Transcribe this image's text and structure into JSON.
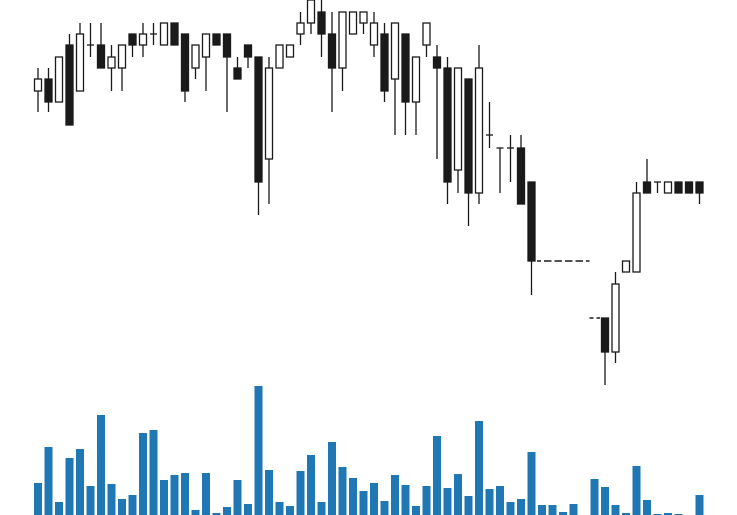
{
  "chart_data": {
    "type": "candlestick",
    "open": [
      309,
      321,
      298,
      355,
      309,
      355,
      355,
      332,
      332,
      366,
      355,
      366,
      355,
      377,
      366,
      332,
      343,
      366,
      366,
      332,
      355,
      343,
      241,
      332,
      343,
      366,
      377,
      388,
      366,
      332,
      366,
      377,
      355,
      366,
      321,
      366,
      298,
      355,
      343,
      332,
      230,
      321,
      207,
      265,
      252,
      252,
      252,
      218,
      139,
      139,
      139,
      139,
      139,
      82,
      82,
      48,
      128,
      128,
      218,
      218,
      207,
      218,
      218,
      218
    ],
    "high": [
      332,
      332,
      343,
      366,
      377,
      377,
      377,
      355,
      355,
      366,
      377,
      377,
      377,
      377,
      366,
      355,
      366,
      366,
      366,
      343,
      355,
      343,
      343,
      355,
      355,
      388,
      400,
      400,
      388,
      388,
      388,
      388,
      388,
      377,
      377,
      366,
      343,
      377,
      355,
      343,
      332,
      321,
      355,
      298,
      252,
      265,
      265,
      218,
      139,
      139,
      139,
      139,
      139,
      82,
      82,
      128,
      139,
      218,
      241,
      218,
      218,
      218,
      218,
      218
    ],
    "low": [
      288,
      288,
      298,
      275,
      309,
      343,
      332,
      309,
      309,
      343,
      343,
      355,
      355,
      355,
      298,
      321,
      309,
      355,
      288,
      321,
      332,
      185,
      196,
      332,
      343,
      355,
      366,
      343,
      288,
      309,
      366,
      366,
      343,
      298,
      265,
      265,
      265,
      343,
      241,
      196,
      207,
      174,
      196,
      252,
      207,
      218,
      196,
      105,
      139,
      139,
      139,
      139,
      139,
      82,
      15,
      37,
      128,
      128,
      207,
      207,
      207,
      207,
      207,
      196
    ],
    "close": [
      321,
      298,
      343,
      275,
      366,
      355,
      332,
      343,
      355,
      355,
      366,
      366,
      377,
      355,
      309,
      355,
      366,
      355,
      343,
      321,
      343,
      218,
      332,
      355,
      355,
      377,
      400,
      366,
      332,
      388,
      388,
      388,
      377,
      309,
      377,
      298,
      343,
      377,
      332,
      218,
      332,
      207,
      332,
      265,
      252,
      252,
      196,
      139,
      139,
      139,
      139,
      139,
      139,
      82,
      48,
      116,
      139,
      207,
      207,
      218,
      218,
      207,
      207,
      207
    ],
    "volume": [
      32,
      68,
      13,
      57,
      66,
      29,
      100,
      31,
      16,
      20,
      82,
      85,
      35,
      40,
      42,
      5,
      42,
      2,
      8,
      35,
      11,
      129,
      45,
      13,
      9,
      44,
      60,
      13,
      73,
      48,
      37,
      24,
      32,
      14,
      40,
      30,
      9,
      29,
      79,
      27,
      41,
      19,
      94,
      26,
      29,
      13,
      16,
      63,
      10,
      10,
      3,
      11,
      0,
      36,
      28,
      10,
      2,
      49,
      15,
      1,
      2,
      1,
      0,
      20
    ],
    "ylim": [
      0,
      400
    ],
    "volume_ylim": [
      0,
      130
    ],
    "up_color": "#ffffff",
    "down_color": "#1a1a1a",
    "volume_color": "#1f77b4"
  }
}
